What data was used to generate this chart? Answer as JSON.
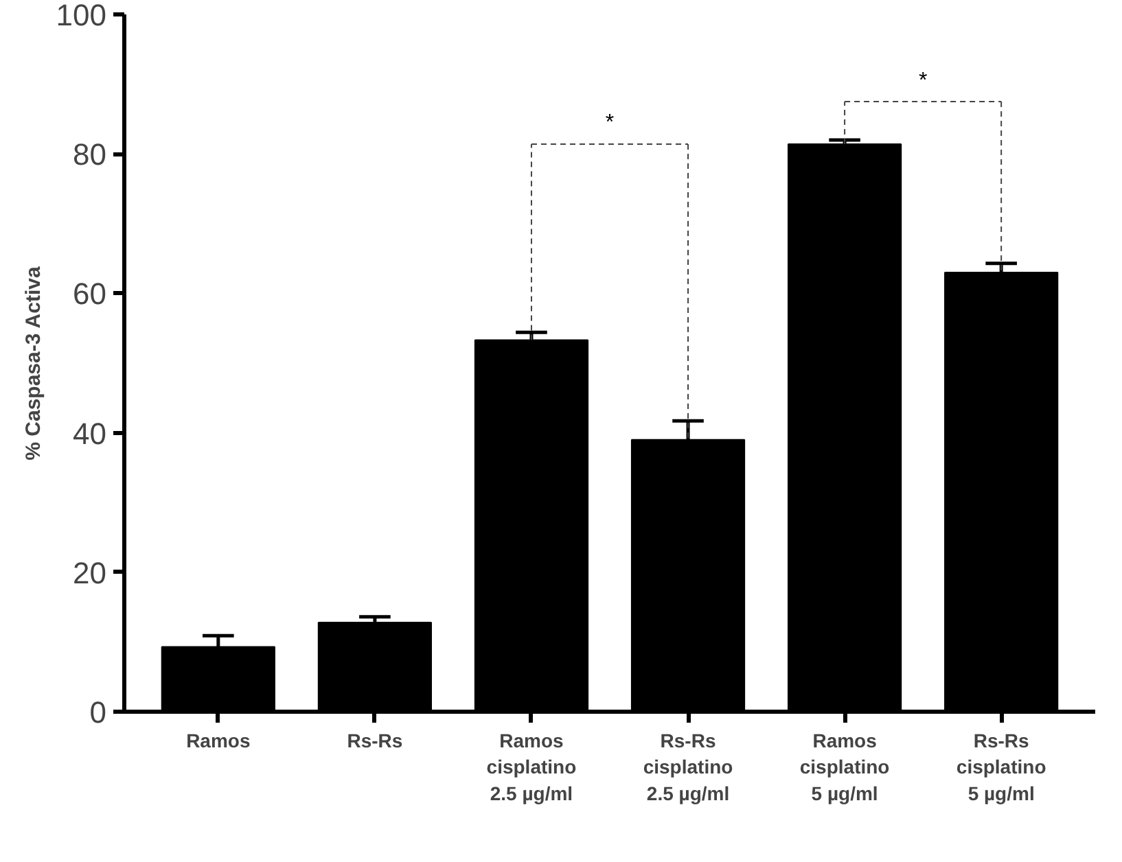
{
  "chart_data": {
    "type": "bar",
    "ylabel": "% Caspasa-3 Activa",
    "categories": [
      "Ramos",
      "Rs-Rs",
      "Ramos\ncisplatino\n2.5 µg/ml",
      "Rs-Rs\ncisplatino\n2.5 µg/ml",
      "Ramos\ncisplatino\n5 µg/ml",
      "Rs-Rs\ncisplatino\n5 µg/ml"
    ],
    "values": [
      9.3,
      12.8,
      53.3,
      39.0,
      81.4,
      63.0
    ],
    "errors": [
      [
        9.3,
        10.9
      ],
      [
        12.8,
        13.6
      ],
      [
        53.3,
        54.4
      ],
      [
        39.0,
        41.7
      ],
      [
        81.4,
        82.0
      ],
      [
        63.0,
        64.3
      ]
    ],
    "color": "#000000",
    "ylim": [
      0,
      100
    ],
    "yticks": [
      0,
      20,
      40,
      60,
      80,
      100
    ],
    "grid": false,
    "annotations": [
      "*",
      "*"
    ]
  }
}
